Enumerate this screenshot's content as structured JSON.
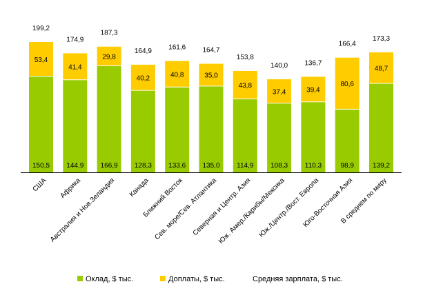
{
  "chart_data": {
    "type": "bar",
    "stacked": true,
    "categories": [
      "США",
      "Африка",
      "Австралия и Нов.Зеландия",
      "Канада",
      "Ближний Восток",
      "Сев. море/Сев. Атлантика",
      "Северная и Центр. Азия",
      "Юж. Амер./Карибы/Мексика",
      "Юж./Центр./Вост. Европа",
      "Юго-Восточная Азия",
      "В среднем по миру"
    ],
    "series": [
      {
        "name": "Оклад, $ тыс.",
        "color": "#99cc00",
        "values": [
          150.5,
          144.9,
          166.9,
          128.3,
          133.6,
          135.0,
          114.9,
          108.3,
          110.3,
          98.9,
          139.2
        ],
        "labels": [
          "150,5",
          "144,9",
          "166,9",
          "128,3",
          "133,6",
          "135,0",
          "114,9",
          "108,3",
          "110,3",
          "98,9",
          "139,2"
        ]
      },
      {
        "name": "Доплаты, $ тыс.",
        "color": "#ffcc00",
        "values": [
          53.4,
          41.4,
          29.8,
          40.2,
          40.8,
          35.0,
          43.8,
          37.4,
          39.4,
          80.6,
          48.7
        ],
        "labels": [
          "53,4",
          "41,4",
          "29,8",
          "40,2",
          "40,8",
          "35,0",
          "43,8",
          "37,4",
          "39,4",
          "80,6",
          "48,7"
        ]
      }
    ],
    "totals": {
      "name": "Средняя зарплата, $ тыс.",
      "values": [
        199.2,
        174.9,
        187.3,
        164.9,
        161.6,
        164.7,
        153.8,
        140.0,
        136.7,
        166.4,
        173.3
      ],
      "labels": [
        "199,2",
        "174,9",
        "187,3",
        "164,9",
        "161,6",
        "164,7",
        "153,8",
        "140,0",
        "136,7",
        "166,4",
        "173,3"
      ]
    },
    "ylim": [
      0,
      215
    ],
    "grid": false,
    "legend_position": "bottom"
  }
}
